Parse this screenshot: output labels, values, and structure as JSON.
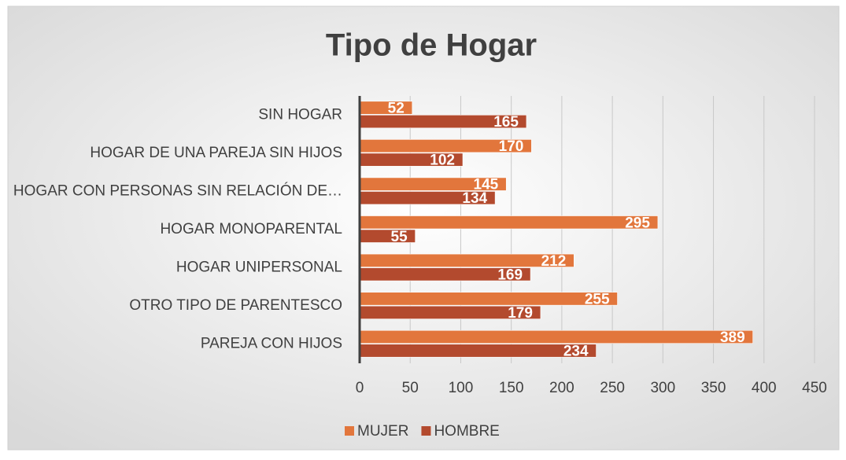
{
  "chart_data": {
    "type": "barh",
    "title": "Tipo de Hogar",
    "categories": [
      "SIN HOGAR",
      "HOGAR DE UNA PAREJA SIN HIJOS",
      "HOGAR CON PERSONAS SIN RELACIÓN DE…",
      "HOGAR MONOPARENTAL",
      "HOGAR UNIPERSONAL",
      "OTRO TIPO DE PARENTESCO",
      "PAREJA CON HIJOS"
    ],
    "series": [
      {
        "name": "MUJER",
        "color": "#e2763c",
        "values": [
          52,
          170,
          145,
          295,
          212,
          255,
          389
        ]
      },
      {
        "name": "HOMBRE",
        "color": "#b34a2e",
        "values": [
          165,
          102,
          134,
          55,
          169,
          179,
          234
        ]
      }
    ],
    "xlim": [
      0,
      450
    ],
    "xticks": [
      0,
      50,
      100,
      150,
      200,
      250,
      300,
      350,
      400,
      450
    ],
    "grid": true,
    "legend": "bottom"
  }
}
